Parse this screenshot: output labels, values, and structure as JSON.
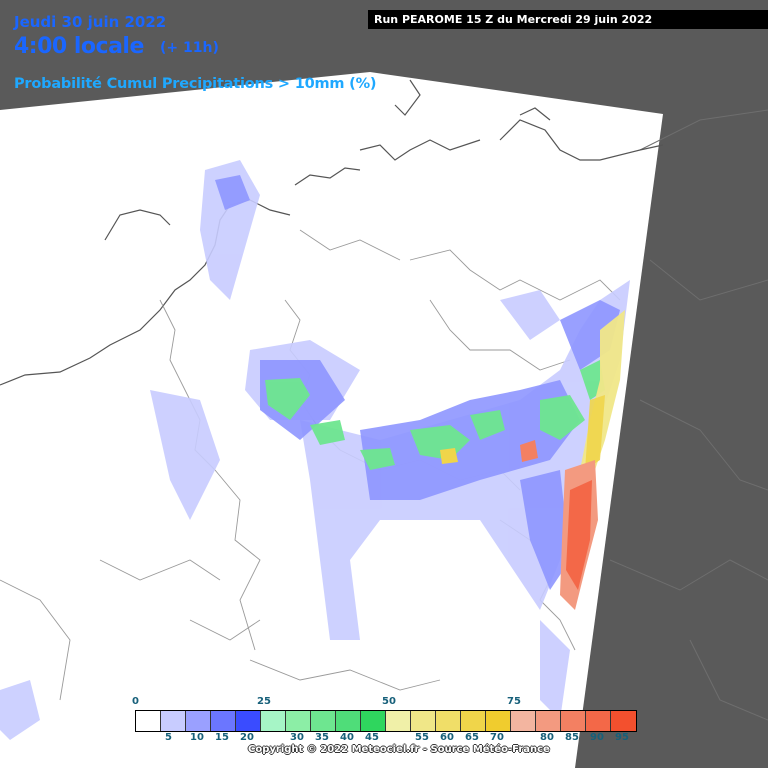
{
  "header": {
    "date": "Jeudi 30 juin 2022",
    "time": "4:00 locale",
    "lead": "(+ 11h)",
    "parameter": "Probabilité Cumul Precipitations > 10mm (%)"
  },
  "run_banner": "Run PEAROME 15 Z du Mercredi 29 juin 2022",
  "colors": {
    "background_out_of_domain": "#5a5a5a",
    "map_land": "#ffffff",
    "borders": "#9a9a9a",
    "coastline": "#555555"
  },
  "legend": {
    "top_ticks": [
      "0",
      "25",
      "50",
      "75"
    ],
    "bottom_ticks": [
      "5",
      "10",
      "15",
      "20",
      "30",
      "35",
      "40",
      "45",
      "55",
      "60",
      "65",
      "70",
      "80",
      "85",
      "90",
      "95"
    ],
    "colors": [
      "#ffffff",
      "#c8ccff",
      "#9aa0ff",
      "#6b76ff",
      "#3a4cff",
      "#a6f5c6",
      "#8ceea6",
      "#6ee690",
      "#4fdd79",
      "#2fd65e",
      "#f0f0a8",
      "#f0e788",
      "#f0de68",
      "#f0d54a",
      "#f0cc2e",
      "#f3b5a0",
      "#f39a80",
      "#f38062",
      "#f36848",
      "#f3502e"
    ]
  },
  "copyright": "Copyright © 2022 Meteociel.fr - Source Météo-France"
}
